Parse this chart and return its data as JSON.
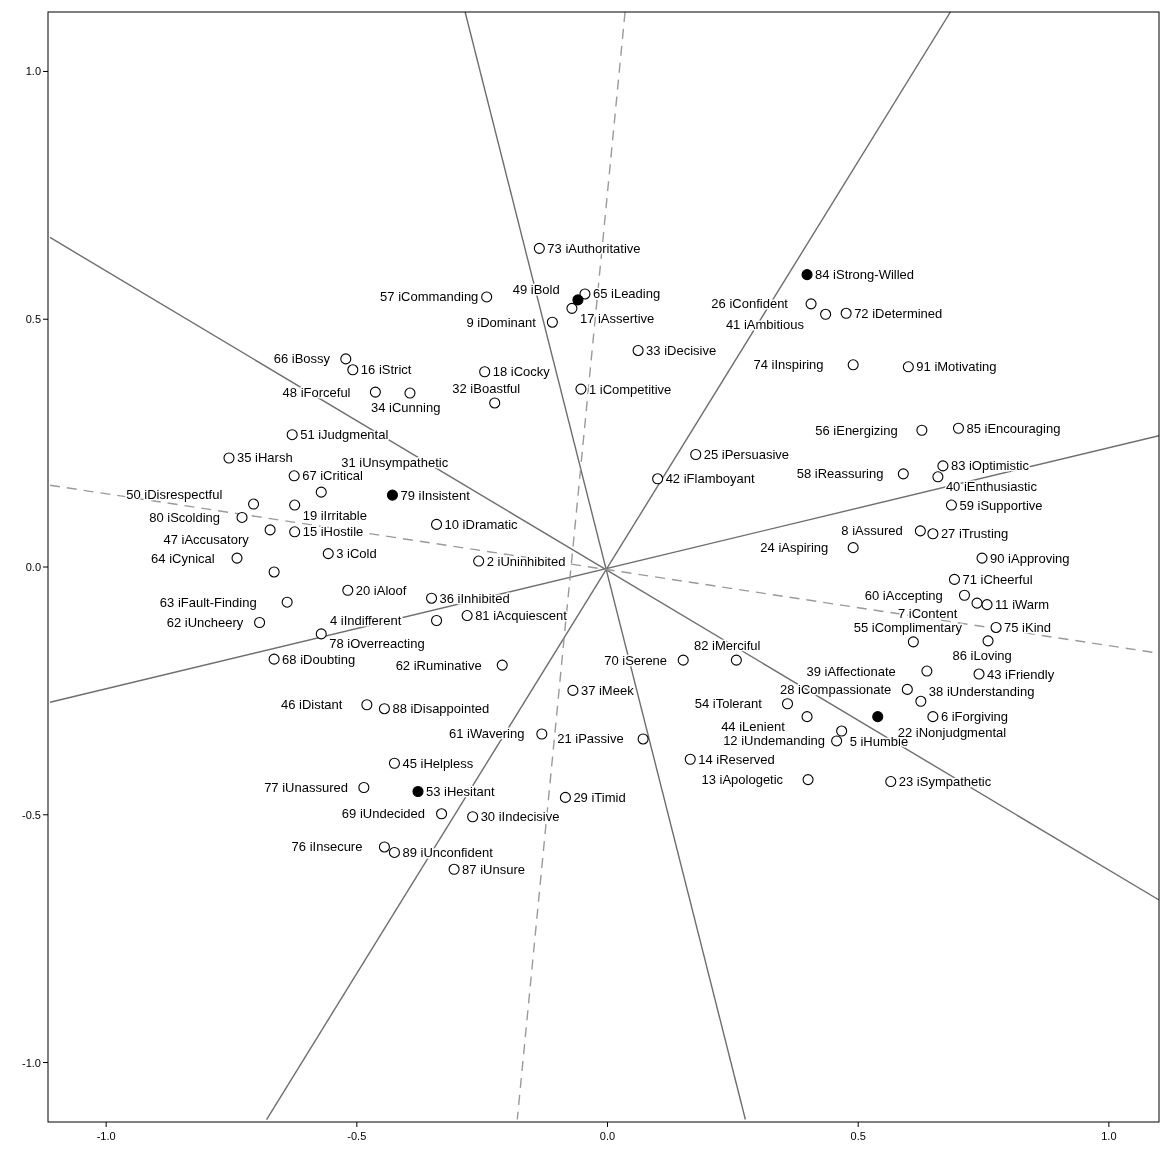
{
  "chart_data": {
    "type": "scatter",
    "xlim": [
      -1.116,
      1.1
    ],
    "ylim": [
      -1.12,
      1.12
    ],
    "xticks": [
      {
        "value": -1,
        "label": "-1.0"
      },
      {
        "value": -0.5,
        "label": "-0.5"
      },
      {
        "value": 0,
        "label": "0.0"
      },
      {
        "value": 0.5,
        "label": "0.5"
      },
      {
        "value": 1,
        "label": "1.0"
      }
    ],
    "yticks": [
      {
        "value": -1,
        "label": "-1.0"
      },
      {
        "value": -0.5,
        "label": "-0.5"
      },
      {
        "value": 0,
        "label": "0.0"
      },
      {
        "value": 0.5,
        "label": "0.5"
      },
      {
        "value": 1,
        "label": "1.0"
      }
    ],
    "grid": false,
    "series": [
      {
        "type": "line",
        "color": "#6e6e6e",
        "line_style": "solid",
        "marker": "none",
        "x": [
          -0.284,
          0.275
        ],
        "values": [
          1.12,
          -1.115
        ]
      },
      {
        "type": "line",
        "color": "#6e6e6e",
        "line_style": "solid",
        "marker": "none",
        "x": [
          -1.112,
          1.1
        ],
        "values": [
          0.665,
          -0.672
        ]
      },
      {
        "type": "line",
        "color": "#6e6e6e",
        "line_style": "solid",
        "marker": "none",
        "x": [
          -1.112,
          1.1
        ],
        "values": [
          -0.273,
          0.265
        ]
      },
      {
        "type": "line",
        "color": "#6e6e6e",
        "line_style": "solid",
        "marker": "none",
        "x": [
          0.684,
          -0.68
        ],
        "values": [
          1.12,
          -1.115
        ]
      },
      {
        "type": "line",
        "color": "#9a9a9a",
        "line_style": "dashed",
        "marker": "none",
        "x": [
          0.035,
          -0.18
        ],
        "values": [
          1.12,
          -1.115
        ]
      },
      {
        "type": "line",
        "color": "#9a9a9a",
        "line_style": "dashed",
        "marker": "none",
        "x": [
          -1.112,
          1.1
        ],
        "values": [
          0.165,
          -0.174
        ]
      },
      {
        "color": "#ffffff",
        "marker": "circle",
        "x": [
          -0.136,
          -0.045,
          -0.071,
          -0.11,
          -0.241,
          0.406,
          0.435,
          0.476,
          -0.522,
          -0.508,
          -0.245,
          0.061,
          0.6,
          0.49,
          -0.463,
          -0.394,
          -0.053,
          -0.225,
          -0.629,
          0.7,
          0.627,
          0.176,
          -0.755,
          -0.625,
          -0.571,
          0.1,
          0.59,
          0.669,
          0.659,
          -0.706,
          -0.729,
          0.686,
          -0.624,
          -0.673,
          -0.624,
          -0.557,
          -0.341,
          0.624,
          0.649,
          -0.739,
          -0.665,
          -0.518,
          -0.351,
          -0.341,
          -0.28,
          -0.257,
          0.747,
          0.49,
          0.692,
          0.712,
          0.737,
          0.757,
          0.775,
          0.759,
          0.61,
          0.637,
          0.741,
          0.598,
          0.625,
          0.649,
          0.398,
          0.359,
          0.467,
          0.457,
          0.151,
          0.257,
          -0.069,
          -0.21,
          -0.131,
          0.071,
          0.165,
          0.4,
          0.565,
          -0.639,
          -0.694,
          -0.571,
          -0.665,
          -0.48,
          -0.445,
          -0.425,
          -0.486,
          -0.084,
          -0.331,
          -0.269,
          -0.445,
          -0.425,
          -0.306
        ],
        "values": [
          0.643,
          0.551,
          0.522,
          0.494,
          0.545,
          0.531,
          0.51,
          0.512,
          0.42,
          0.398,
          0.394,
          0.437,
          0.404,
          0.408,
          0.353,
          0.351,
          0.359,
          0.331,
          0.267,
          0.28,
          0.276,
          0.227,
          0.22,
          0.184,
          0.151,
          0.178,
          0.188,
          0.204,
          0.182,
          0.127,
          0.1,
          0.125,
          0.125,
          0.075,
          0.071,
          0.027,
          0.086,
          0.073,
          0.067,
          0.018,
          -0.01,
          -0.047,
          -0.063,
          -0.108,
          -0.098,
          0.012,
          0.018,
          0.039,
          -0.025,
          -0.057,
          -0.073,
          -0.076,
          -0.122,
          -0.149,
          -0.151,
          -0.21,
          -0.216,
          -0.247,
          -0.271,
          -0.302,
          -0.302,
          -0.276,
          -0.331,
          -0.351,
          -0.188,
          -0.188,
          -0.249,
          -0.198,
          -0.337,
          -0.347,
          -0.388,
          -0.429,
          -0.433,
          -0.071,
          -0.112,
          -0.135,
          -0.186,
          -0.278,
          -0.286,
          -0.396,
          -0.445,
          -0.465,
          -0.498,
          -0.504,
          -0.565,
          -0.576,
          -0.61
        ]
      },
      {
        "color": "#000000",
        "marker": "circle",
        "x": [
          0.398,
          -0.059,
          -0.429,
          0.539,
          -0.378
        ],
        "values": [
          0.59,
          0.539,
          0.145,
          -0.302,
          -0.453
        ]
      }
    ],
    "annotations": [
      {
        "text": "73 iAuthoritative",
        "x": -0.136,
        "y": 0.643
      },
      {
        "text": "65 iLeading",
        "x": -0.045,
        "y": 0.551
      },
      {
        "text": "17 iAssertive",
        "x": -0.071,
        "y": 0.522
      },
      {
        "text": "9 iDominant",
        "x": -0.11,
        "y": 0.494
      },
      {
        "text": "57 iCommanding",
        "x": -0.241,
        "y": 0.545
      },
      {
        "text": "26 iConfident",
        "x": 0.406,
        "y": 0.531
      },
      {
        "text": "41 iAmbitious",
        "x": 0.435,
        "y": 0.51
      },
      {
        "text": "72 iDetermined",
        "x": 0.476,
        "y": 0.512
      },
      {
        "text": "66 iBossy",
        "x": -0.522,
        "y": 0.42
      },
      {
        "text": "16 iStrict",
        "x": -0.508,
        "y": 0.398
      },
      {
        "text": "18 iCocky",
        "x": -0.245,
        "y": 0.394
      },
      {
        "text": "33 iDecisive",
        "x": 0.061,
        "y": 0.437
      },
      {
        "text": "91 iMotivating",
        "x": 0.6,
        "y": 0.404
      },
      {
        "text": "74 iInspiring",
        "x": 0.49,
        "y": 0.408
      },
      {
        "text": "48 iForceful",
        "x": -0.463,
        "y": 0.353
      },
      {
        "text": "34 iCunning",
        "x": -0.394,
        "y": 0.351
      },
      {
        "text": "1 iCompetitive",
        "x": -0.053,
        "y": 0.359
      },
      {
        "text": "32 iBoastful",
        "x": -0.225,
        "y": 0.331
      },
      {
        "text": "51 iJudgmental",
        "x": -0.629,
        "y": 0.267
      },
      {
        "text": "85 iEncouraging",
        "x": 0.7,
        "y": 0.28
      },
      {
        "text": "56 iEnergizing",
        "x": 0.627,
        "y": 0.276
      },
      {
        "text": "25 iPersuasive",
        "x": 0.176,
        "y": 0.227
      },
      {
        "text": "35 iHarsh",
        "x": -0.755,
        "y": 0.22
      },
      {
        "text": "67 iCritical",
        "x": -0.625,
        "y": 0.184
      },
      {
        "text": "31 iUnsympathetic",
        "x": -0.571,
        "y": 0.151
      },
      {
        "text": "42 iFlamboyant",
        "x": 0.1,
        "y": 0.178
      },
      {
        "text": "58 iReassuring",
        "x": 0.59,
        "y": 0.188
      },
      {
        "text": "83 iOptimistic",
        "x": 0.669,
        "y": 0.204
      },
      {
        "text": "40 iEnthusiastic",
        "x": 0.659,
        "y": 0.182
      },
      {
        "text": "50 iDisrespectful",
        "x": -0.706,
        "y": 0.127
      },
      {
        "text": "80 iScolding",
        "x": -0.729,
        "y": 0.1
      },
      {
        "text": "59 iSupportive",
        "x": 0.686,
        "y": 0.125
      },
      {
        "text": "19 iIrritable",
        "x": -0.624,
        "y": 0.125
      },
      {
        "text": "47 iAccusatory",
        "x": -0.673,
        "y": 0.075
      },
      {
        "text": "15 iHostile",
        "x": -0.624,
        "y": 0.071
      },
      {
        "text": "3 iCold",
        "x": -0.557,
        "y": 0.027
      },
      {
        "text": "10 iDramatic",
        "x": -0.341,
        "y": 0.086
      },
      {
        "text": "8 iAssured",
        "x": 0.624,
        "y": 0.073
      },
      {
        "text": "27 iTrusting",
        "x": 0.649,
        "y": 0.067
      },
      {
        "text": "64 iCynical",
        "x": -0.739,
        "y": 0.018
      },
      {
        "text": "20 iAloof",
        "x": -0.518,
        "y": -0.047
      },
      {
        "text": "36 iInhibited",
        "x": -0.351,
        "y": -0.063
      },
      {
        "text": "4 iIndifferent",
        "x": -0.341,
        "y": -0.108
      },
      {
        "text": "81 iAcquiescent",
        "x": -0.28,
        "y": -0.098
      },
      {
        "text": "2 iUninhibited",
        "x": -0.257,
        "y": 0.012
      },
      {
        "text": "90 iApproving",
        "x": 0.747,
        "y": 0.018
      },
      {
        "text": "24 iAspiring",
        "x": 0.49,
        "y": 0.039
      },
      {
        "text": "71 iCheerful",
        "x": 0.692,
        "y": -0.025
      },
      {
        "text": "60 iAccepting",
        "x": 0.712,
        "y": -0.057
      },
      {
        "text": "7 iContent",
        "x": 0.737,
        "y": -0.073
      },
      {
        "text": "11 iWarm",
        "x": 0.757,
        "y": -0.076
      },
      {
        "text": "75 iKind",
        "x": 0.775,
        "y": -0.122
      },
      {
        "text": "86 iLoving",
        "x": 0.759,
        "y": -0.149
      },
      {
        "text": "55 iComplimentary",
        "x": 0.61,
        "y": -0.151
      },
      {
        "text": "39 iAffectionate",
        "x": 0.637,
        "y": -0.21
      },
      {
        "text": "43 iFriendly",
        "x": 0.741,
        "y": -0.216
      },
      {
        "text": "28 iCompassionate",
        "x": 0.598,
        "y": -0.247
      },
      {
        "text": "38 iUnderstanding",
        "x": 0.625,
        "y": -0.271
      },
      {
        "text": "6 iForgiving",
        "x": 0.649,
        "y": -0.302
      },
      {
        "text": "44 iLenient",
        "x": 0.398,
        "y": -0.302
      },
      {
        "text": "54 iTolerant",
        "x": 0.359,
        "y": -0.276
      },
      {
        "text": "5 iHumble",
        "x": 0.467,
        "y": -0.331
      },
      {
        "text": "12 iUndemanding",
        "x": 0.457,
        "y": -0.351
      },
      {
        "text": "70 iSerene",
        "x": 0.151,
        "y": -0.188
      },
      {
        "text": "82 iMerciful",
        "x": 0.257,
        "y": -0.188
      },
      {
        "text": "37 iMeek",
        "x": -0.069,
        "y": -0.249
      },
      {
        "text": "62 iRuminative",
        "x": -0.21,
        "y": -0.198
      },
      {
        "text": "61 iWavering",
        "x": -0.131,
        "y": -0.337
      },
      {
        "text": "21 iPassive",
        "x": 0.071,
        "y": -0.347
      },
      {
        "text": "14 iReserved",
        "x": 0.165,
        "y": -0.388
      },
      {
        "text": "13 iApologetic",
        "x": 0.4,
        "y": -0.429
      },
      {
        "text": "23 iSympathetic",
        "x": 0.565,
        "y": -0.433
      },
      {
        "text": "63 iFault-Finding",
        "x": -0.639,
        "y": -0.071
      },
      {
        "text": "62 iUncheery",
        "x": -0.694,
        "y": -0.112
      },
      {
        "text": "78 iOverreacting",
        "x": -0.571,
        "y": -0.135
      },
      {
        "text": "68 iDoubting",
        "x": -0.665,
        "y": -0.186
      },
      {
        "text": "46 iDistant",
        "x": -0.48,
        "y": -0.278
      },
      {
        "text": "88 iDisappointed",
        "x": -0.445,
        "y": -0.286
      },
      {
        "text": "45 iHelpless",
        "x": -0.425,
        "y": -0.396
      },
      {
        "text": "77 iUnassured",
        "x": -0.486,
        "y": -0.445
      },
      {
        "text": "29 iTimid",
        "x": -0.084,
        "y": -0.465
      },
      {
        "text": "69 iUndecided",
        "x": -0.331,
        "y": -0.498
      },
      {
        "text": "30 iIndecisive",
        "x": -0.269,
        "y": -0.504
      },
      {
        "text": "76 iInsecure",
        "x": -0.445,
        "y": -0.565
      },
      {
        "text": "89 iUnconfident",
        "x": -0.425,
        "y": -0.576
      },
      {
        "text": "87 iUnsure",
        "x": -0.306,
        "y": -0.61
      },
      {
        "text": "84 iStrong-Willed",
        "x": 0.398,
        "y": 0.59
      },
      {
        "text": "49 iBold",
        "x": -0.059,
        "y": 0.539
      },
      {
        "text": "79 iInsistent",
        "x": -0.429,
        "y": 0.145
      },
      {
        "text": "22 iNonjudgmental",
        "x": 0.539,
        "y": -0.302
      },
      {
        "text": "53 iHesitant",
        "x": -0.378,
        "y": -0.453
      }
    ]
  }
}
